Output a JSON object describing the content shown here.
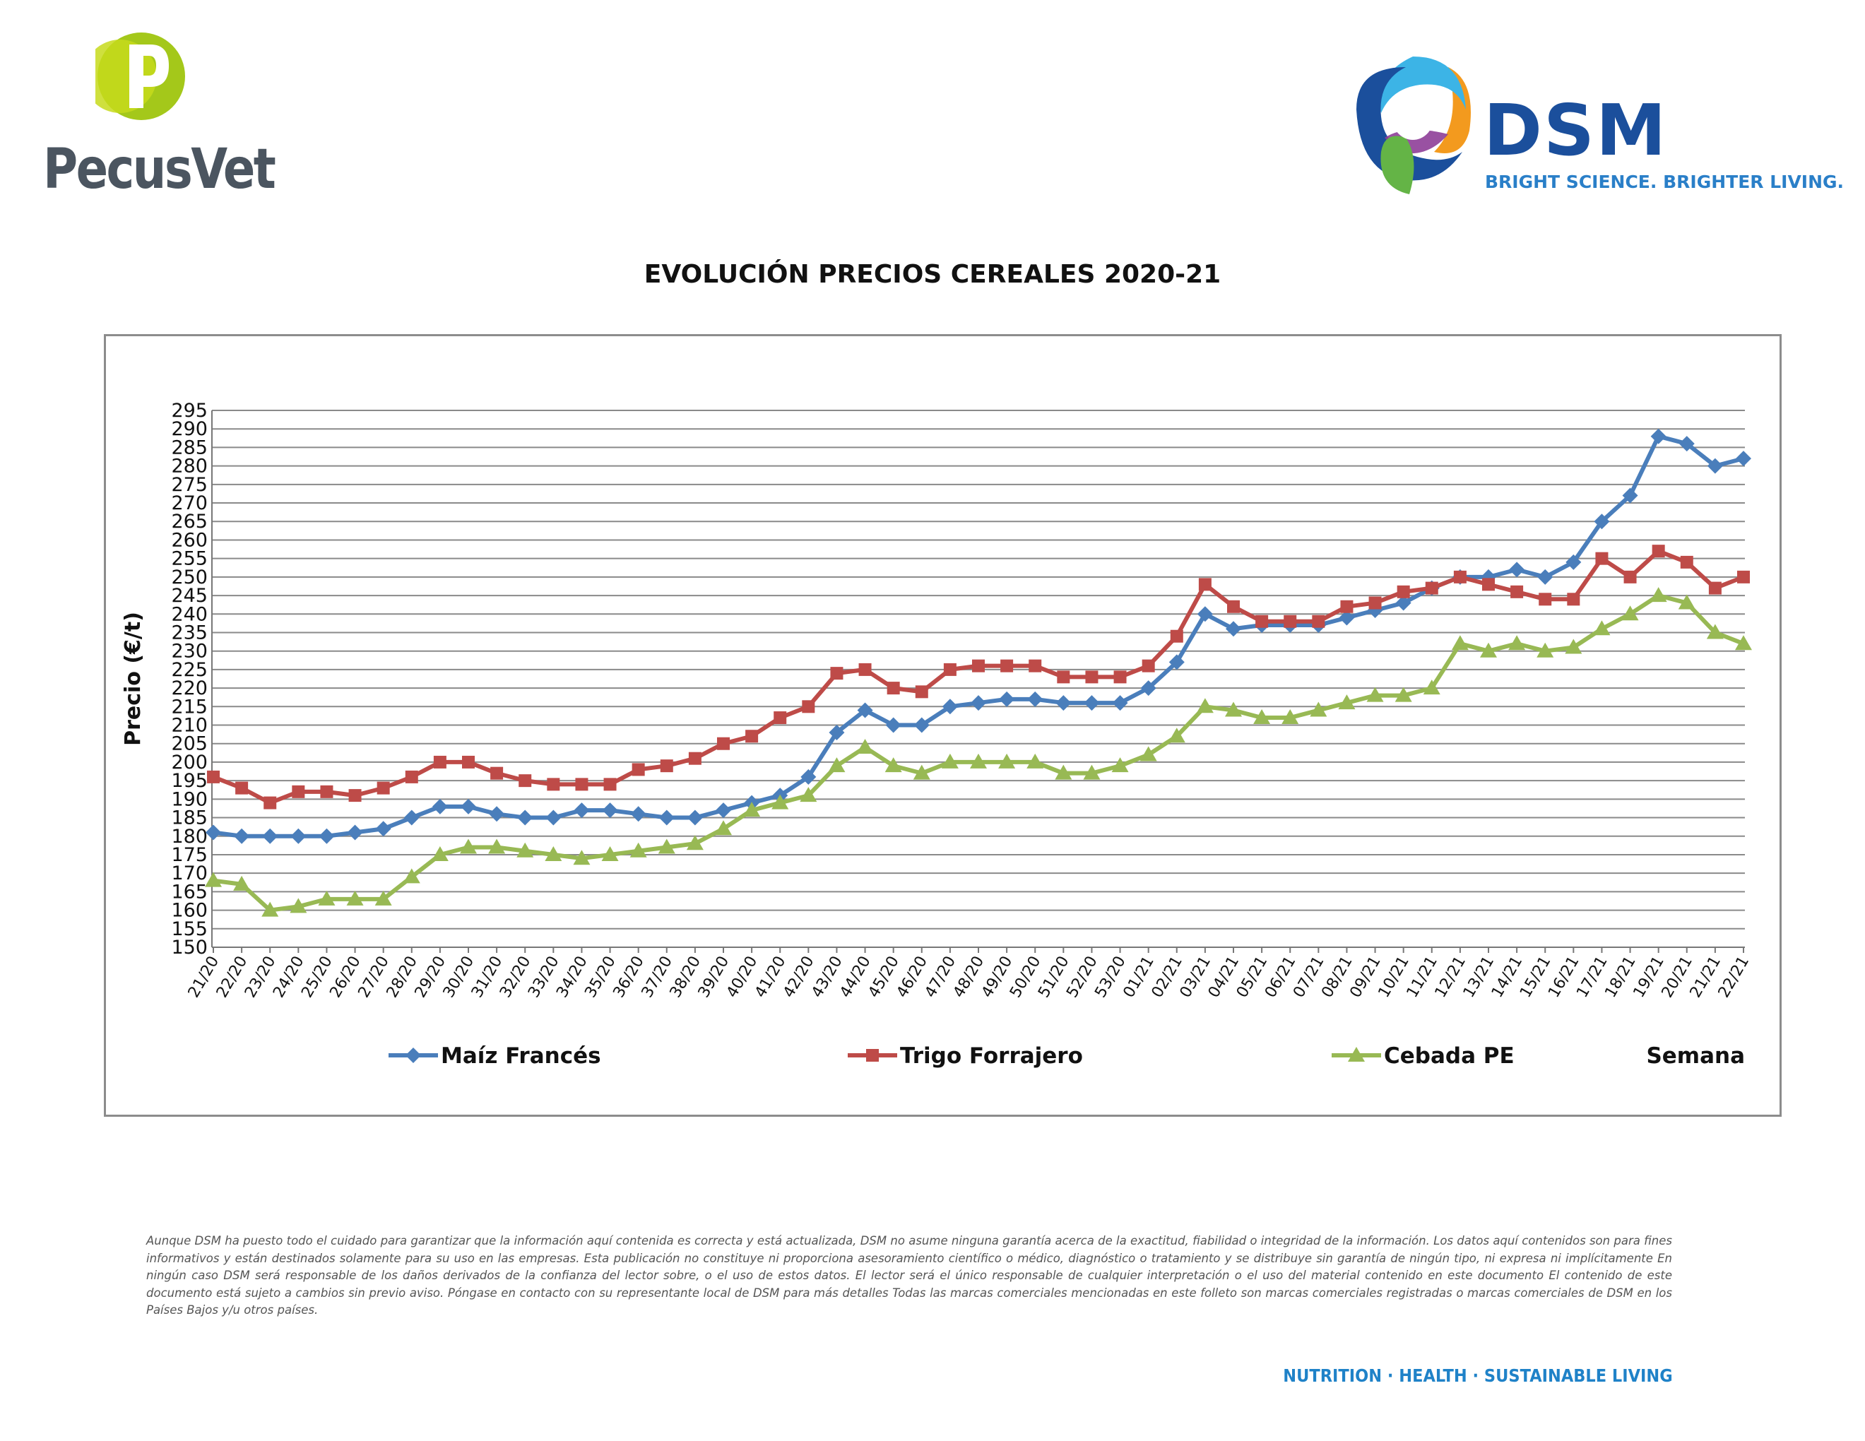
{
  "header": {
    "brand_left": "PecusVet",
    "brand_right": "DSM",
    "brand_right_tagline": "BRIGHT SCIENCE. BRIGHTER LIVING."
  },
  "colors": {
    "maiz": "#4a7ebb",
    "trigo": "#be4b48",
    "cebada": "#98b954",
    "grid": "#8a8a8a",
    "pecus_green": "#a4c81a",
    "dsm_blue": "#1b4f9c",
    "footer_blue": "#1f82c8"
  },
  "chart_data": {
    "type": "line",
    "title": "EVOLUCIÓN PRECIOS CEREALES 2020-21",
    "xlabel": "Semana",
    "ylabel": "Precio (€/t)",
    "ylim": [
      150,
      295
    ],
    "ytick_step": 5,
    "grid": true,
    "legend_position": "bottom",
    "categories": [
      "21/20",
      "22/20",
      "23/20",
      "24/20",
      "25/20",
      "26/20",
      "27/20",
      "28/20",
      "29/20",
      "30/20",
      "31/20",
      "32/20",
      "33/20",
      "34/20",
      "35/20",
      "36/20",
      "37/20",
      "38/20",
      "39/20",
      "40/20",
      "41/20",
      "42/20",
      "43/20",
      "44/20",
      "45/20",
      "46/20",
      "47/20",
      "48/20",
      "49/20",
      "50/20",
      "51/20",
      "52/20",
      "53/20",
      "01/21",
      "02/21",
      "03/21",
      "04/21",
      "05/21",
      "06/21",
      "07/21",
      "08/21",
      "09/21",
      "10/21",
      "11/21",
      "12/21",
      "13/21",
      "14/21",
      "15/21",
      "16/21",
      "17/21",
      "18/21",
      "19/21",
      "20/21",
      "21/21",
      "22/21"
    ],
    "series": [
      {
        "name": "Maíz Francés",
        "marker": "diamond",
        "color_key": "maiz",
        "values": [
          181,
          180,
          180,
          180,
          180,
          181,
          182,
          185,
          188,
          188,
          186,
          185,
          185,
          187,
          187,
          186,
          185,
          185,
          187,
          189,
          191,
          196,
          208,
          214,
          210,
          210,
          215,
          216,
          217,
          217,
          216,
          216,
          216,
          220,
          227,
          240,
          236,
          237,
          237,
          237,
          239,
          241,
          243,
          247,
          250,
          250,
          252,
          250,
          254,
          265,
          272,
          288,
          286,
          280,
          282
        ]
      },
      {
        "name": "Trigo Forrajero",
        "marker": "square",
        "color_key": "trigo",
        "values": [
          196,
          193,
          189,
          192,
          192,
          191,
          193,
          196,
          200,
          200,
          197,
          195,
          194,
          194,
          194,
          198,
          199,
          201,
          205,
          207,
          212,
          215,
          224,
          225,
          220,
          219,
          225,
          226,
          226,
          226,
          223,
          223,
          223,
          226,
          234,
          248,
          242,
          238,
          238,
          238,
          242,
          243,
          246,
          247,
          250,
          248,
          246,
          244,
          244,
          255,
          250,
          257,
          254,
          247,
          250
        ]
      },
      {
        "name": "Cebada PE",
        "marker": "triangle",
        "color_key": "cebada",
        "values": [
          168,
          167,
          160,
          161,
          163,
          163,
          163,
          169,
          175,
          177,
          177,
          176,
          175,
          174,
          175,
          176,
          177,
          178,
          182,
          187,
          189,
          191,
          199,
          204,
          199,
          197,
          200,
          200,
          200,
          200,
          197,
          197,
          199,
          202,
          207,
          215,
          214,
          212,
          212,
          214,
          216,
          218,
          218,
          220,
          232,
          230,
          232,
          230,
          231,
          236,
          240,
          245,
          243,
          235,
          232
        ]
      }
    ]
  },
  "disclaimer": "Aunque DSM ha puesto todo el cuidado para garantizar que la información aquí contenida es correcta y está actualizada, DSM no asume ninguna garantía acerca de la exactitud, fiabilidad o integridad de la información. Los datos aquí contenidos son para fines informativos y están destinados solamente para su uso en las empresas. Esta publicación no constituye ni proporciona asesoramiento científico o médico, diagnóstico o tratamiento y se distribuye sin garantía de ningún tipo, ni expresa ni implícitamente En ningún caso DSM será responsable de los daños derivados de la confianza del lector sobre, o el uso de estos datos. El lector será el único responsable de cualquier interpretación o el uso del material contenido en este documento El contenido de este documento está sujeto a cambios sin previo aviso. Póngase en contacto con su representante local de DSM para más detalles Todas las marcas comerciales mencionadas en este folleto son marcas comerciales registradas o marcas comerciales de DSM en los Países Bajos y/u otros países.",
  "footer": {
    "tagline": "NUTRITION · HEALTH · SUSTAINABLE LIVING"
  }
}
